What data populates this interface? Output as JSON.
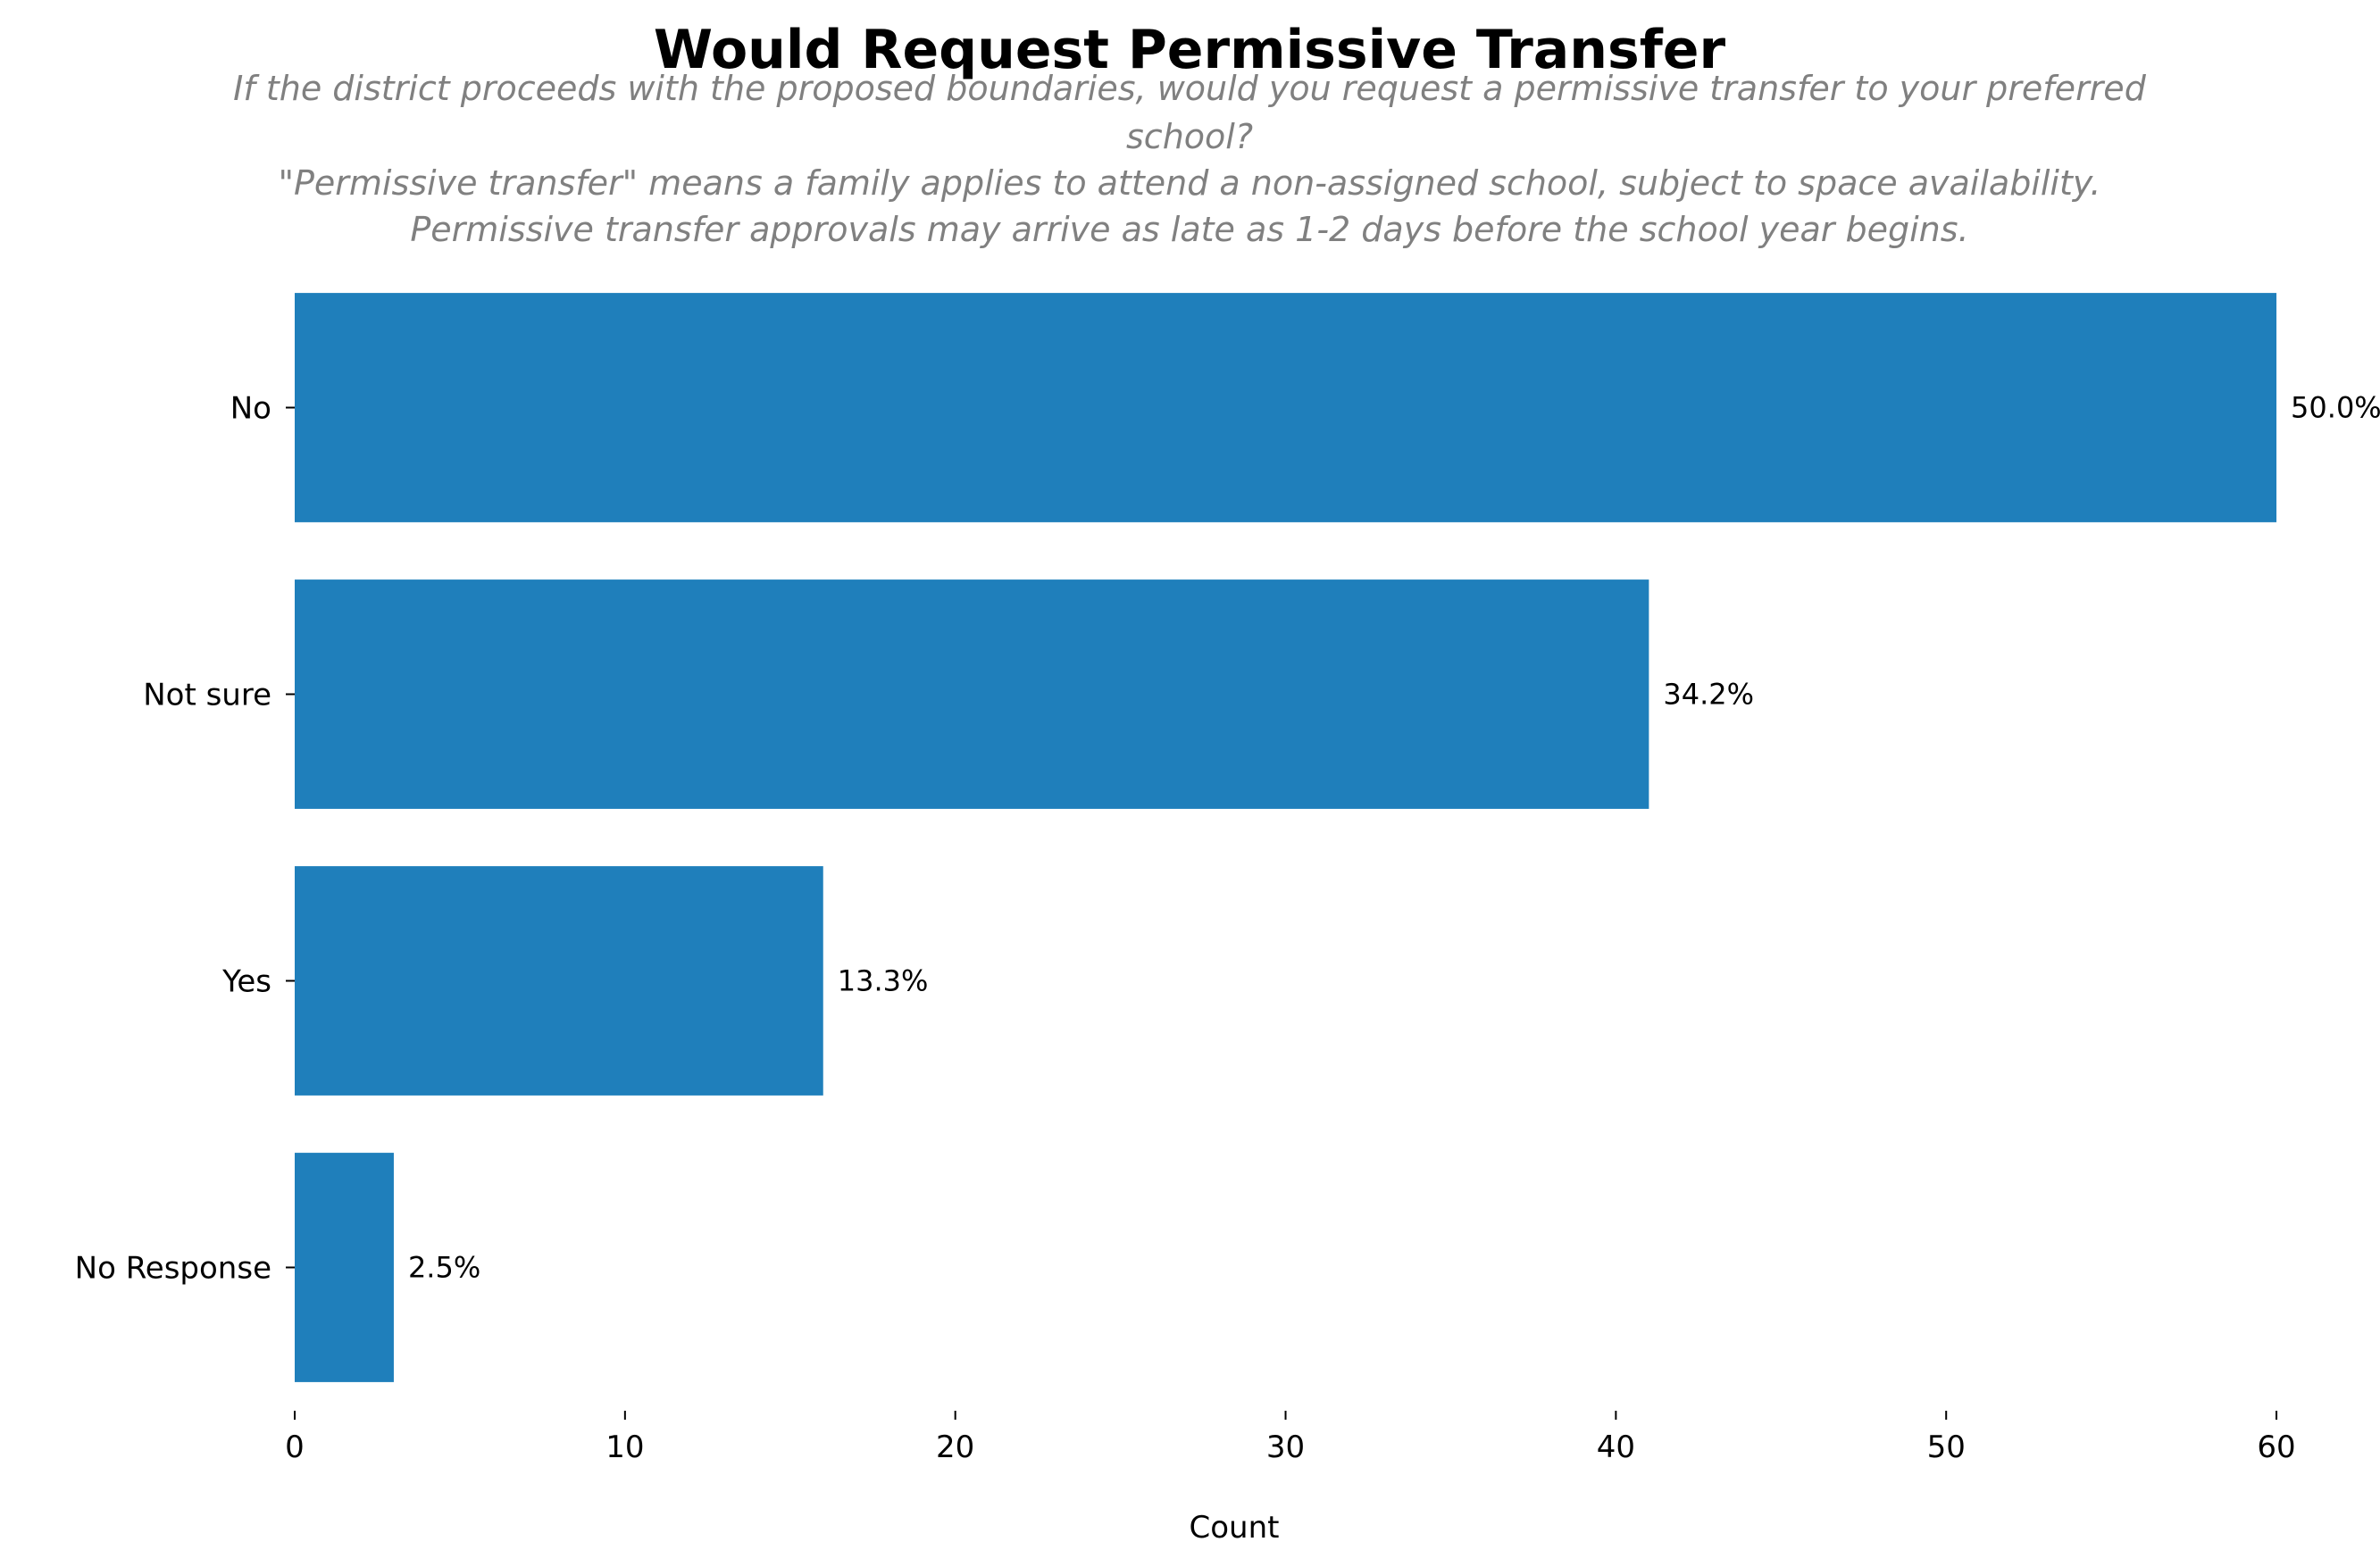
{
  "chart_data": {
    "type": "bar",
    "orientation": "horizontal",
    "title": "Would Request Permissive Transfer",
    "subtitle_lines": [
      "If the district proceeds with the proposed boundaries, would you request a permissive transfer to your preferred",
      "school?",
      "\"Permissive transfer\" means a family applies to attend a non-assigned school, subject to space availability.",
      "Permissive transfer approvals may arrive as late as 1-2 days before the school year begins."
    ],
    "categories": [
      "No",
      "Not sure",
      "Yes",
      "No Response"
    ],
    "values": [
      60,
      41,
      16,
      3
    ],
    "data_labels": [
      "50.0%",
      "34.2%",
      "13.3%",
      "2.5%"
    ],
    "xlabel": "Count",
    "ylabel": "",
    "xlim": [
      0,
      63
    ],
    "xticks": [
      0,
      10,
      20,
      30,
      40,
      50,
      60
    ],
    "grid": false,
    "bar_color": "#1f7fbb"
  }
}
